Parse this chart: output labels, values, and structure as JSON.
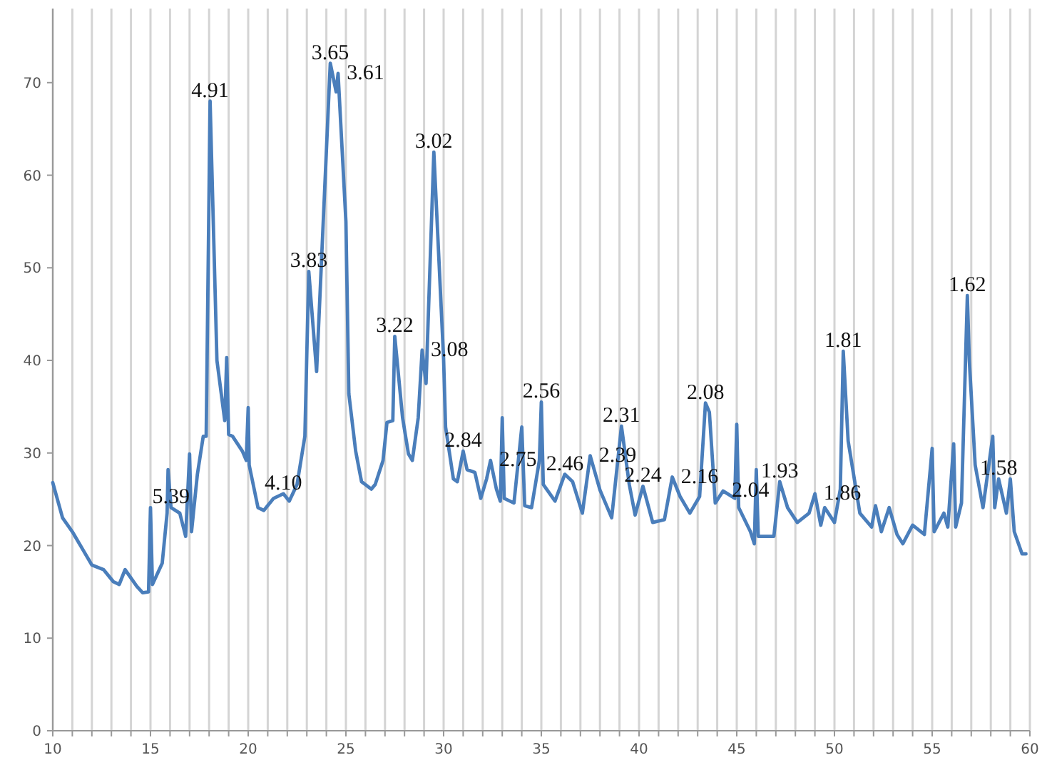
{
  "chart_data": {
    "type": "line",
    "grid": "x",
    "line_style": "solid",
    "marker": "none",
    "xlim": [
      10,
      60
    ],
    "ylim": [
      0,
      78
    ],
    "xticks": [
      10,
      {
        "value": 11,
        "label": null
      },
      {
        "value": 12,
        "label": null
      },
      {
        "value": 13,
        "label": null
      },
      {
        "value": 14,
        "label": null
      },
      15,
      {
        "value": 16,
        "label": null
      },
      {
        "value": 17,
        "label": null
      },
      {
        "value": 18,
        "label": null
      },
      {
        "value": 19,
        "label": null
      },
      20,
      {
        "value": 21,
        "label": null
      },
      {
        "value": 22,
        "label": null
      },
      {
        "value": 23,
        "label": null
      },
      {
        "value": 24,
        "label": null
      },
      25,
      {
        "value": 26,
        "label": null
      },
      {
        "value": 27,
        "label": null
      },
      {
        "value": 28,
        "label": null
      },
      {
        "value": 29,
        "label": null
      },
      30,
      {
        "value": 31,
        "label": null
      },
      {
        "value": 32,
        "label": null
      },
      {
        "value": 33,
        "label": null
      },
      {
        "value": 34,
        "label": null
      },
      35,
      {
        "value": 36,
        "label": null
      },
      {
        "value": 37,
        "label": null
      },
      {
        "value": 38,
        "label": null
      },
      {
        "value": 39,
        "label": null
      },
      40,
      {
        "value": 41,
        "label": null
      },
      {
        "value": 42,
        "label": null
      },
      {
        "value": 43,
        "label": null
      },
      {
        "value": 44,
        "label": null
      },
      45,
      {
        "value": 46,
        "label": null
      },
      {
        "value": 47,
        "label": null
      },
      {
        "value": 48,
        "label": null
      },
      {
        "value": 49,
        "label": null
      },
      50,
      {
        "value": 51,
        "label": null
      },
      {
        "value": 52,
        "label": null
      },
      {
        "value": 53,
        "label": null
      },
      {
        "value": 54,
        "label": null
      },
      55,
      {
        "value": 56,
        "label": null
      },
      {
        "value": 57,
        "label": null
      },
      {
        "value": 58,
        "label": null
      },
      {
        "value": 59,
        "label": null
      },
      60
    ],
    "yticks": [
      0,
      10,
      20,
      30,
      40,
      50,
      60,
      70
    ],
    "series": [
      {
        "color": "#4a7ebb",
        "x": [
          10,
          10.5,
          11,
          11.5,
          12,
          12.6,
          13.1,
          13.4,
          13.7,
          14.3,
          14.6,
          14.9,
          15,
          15.1,
          15.6,
          15.85,
          15.9,
          16.05,
          16.5,
          16.8,
          17,
          17.1,
          17.4,
          17.7,
          17.85,
          18.05,
          18.4,
          18.8,
          18.9,
          19,
          19.2,
          19.7,
          19.9,
          20,
          20.05,
          20.5,
          20.8,
          21.3,
          21.8,
          22.1,
          22.5,
          22.9,
          23.1,
          23.5,
          24.2,
          24.5,
          24.6,
          25,
          25.15,
          25.5,
          25.8,
          26.3,
          26.5,
          26.9,
          27.1,
          27.4,
          27.5,
          27.9,
          28.2,
          28.4,
          28.7,
          28.9,
          29.1,
          29.5,
          30,
          30.1,
          30.5,
          30.7,
          31,
          31.2,
          31.6,
          31.9,
          32.2,
          32.4,
          32.7,
          32.9,
          33,
          33.1,
          33.6,
          34,
          34.15,
          34.5,
          34.9,
          35,
          35.1,
          35.7,
          36.2,
          36.6,
          37.1,
          37.5,
          38,
          38.6,
          39.1,
          39.5,
          39.8,
          40.2,
          40.7,
          41.3,
          41.7,
          42.1,
          42.6,
          43.1,
          43.4,
          43.6,
          43.9,
          44.3,
          44.9,
          45,
          45.1,
          45.7,
          45.9,
          46,
          46.1,
          46.9,
          47.2,
          47.6,
          48.1,
          48.7,
          49,
          49.3,
          49.5,
          50,
          50.3,
          50.45,
          50.7,
          51.3,
          51.9,
          52.1,
          52.4,
          52.8,
          53.2,
          53.5,
          54,
          54.6,
          55,
          55.1,
          55.6,
          55.8,
          56.1,
          56.2,
          56.5,
          56.8,
          56.9,
          57.2,
          57.6,
          58.1,
          58.2,
          58.4,
          58.8,
          59,
          59.2,
          59.6,
          59.8
        ],
        "values": [
          26.8,
          23,
          21.5,
          19.7,
          17.9,
          17.4,
          16.1,
          15.8,
          17.4,
          15.6,
          14.9,
          15,
          24.1,
          15.8,
          18.1,
          23.5,
          28.2,
          24.1,
          23.5,
          21,
          29.9,
          21.5,
          27.7,
          31.8,
          31.8,
          68,
          40,
          33.5,
          40.3,
          32,
          31.8,
          30.2,
          29.2,
          34.9,
          28.7,
          24.1,
          23.8,
          25.1,
          25.6,
          24.8,
          26.6,
          31.8,
          49.6,
          38.8,
          72.1,
          69,
          71,
          55,
          36.4,
          30.2,
          26.9,
          26.1,
          26.6,
          29.2,
          33.3,
          33.5,
          42.6,
          33.8,
          29.9,
          29.2,
          33.8,
          41.1,
          37.5,
          62.5,
          40.1,
          32.8,
          27.2,
          26.9,
          30.2,
          28.2,
          27.9,
          25.1,
          27.2,
          29.2,
          26.1,
          24.8,
          33.8,
          25.1,
          24.6,
          32.8,
          24.3,
          24.1,
          29.2,
          35.5,
          26.6,
          24.8,
          27.7,
          26.9,
          23.5,
          29.7,
          26,
          23,
          32.9,
          26.6,
          23.3,
          26.4,
          22.5,
          22.8,
          27.4,
          25.3,
          23.5,
          25.3,
          35.4,
          34.4,
          24.6,
          25.9,
          25.1,
          33.1,
          24.1,
          21.5,
          20.2,
          28.2,
          21,
          21,
          26.9,
          24.1,
          22.5,
          23.5,
          25.6,
          22.2,
          24.1,
          22.5,
          26.1,
          41,
          31.3,
          23.5,
          22,
          24.3,
          21.5,
          24.1,
          21.2,
          20.2,
          22.2,
          21.2,
          30.5,
          21.5,
          23.5,
          22,
          31,
          22,
          24.6,
          47,
          40,
          28.7,
          24.1,
          31.8,
          24.1,
          27.2,
          23.5,
          27.2,
          21.5,
          19.1,
          19.1
        ]
      }
    ],
    "annotations": [
      {
        "text": "5.39",
        "x": 16.05,
        "y": 24.1
      },
      {
        "text": "4.91",
        "x": 18.05,
        "y": 68
      },
      {
        "text": "3.65",
        "x": 24.2,
        "y": 72.1
      },
      {
        "text": "3.61",
        "x": 24.6,
        "y": 71
      },
      {
        "text": "3.83",
        "x": 23.1,
        "y": 49.6
      },
      {
        "text": "3.02",
        "x": 29.5,
        "y": 62.5
      },
      {
        "text": "3.22",
        "x": 27.5,
        "y": 42.6
      },
      {
        "text": "3.08",
        "x": 28.9,
        "y": 41.1
      },
      {
        "text": "4.10",
        "x": 21.8,
        "y": 25.6
      },
      {
        "text": "2.84",
        "x": 31,
        "y": 30.2
      },
      {
        "text": "2.75",
        "x": 32.4,
        "y": 29.2
      },
      {
        "text": "2.56",
        "x": 35,
        "y": 35.5
      },
      {
        "text": "2.46",
        "x": 36.2,
        "y": 27.7
      },
      {
        "text": "2.39",
        "x": 37.5,
        "y": 29.7
      },
      {
        "text": "2.31",
        "x": 39.1,
        "y": 32.9
      },
      {
        "text": "2.24",
        "x": 40.2,
        "y": 26.4
      },
      {
        "text": "2.16",
        "x": 41.7,
        "y": 27.4
      },
      {
        "text": "2.08",
        "x": 43.4,
        "y": 35.4
      },
      {
        "text": "2.04",
        "x": 44.3,
        "y": 25.9
      },
      {
        "text": "1.93",
        "x": 47.2,
        "y": 26.9
      },
      {
        "text": "1.86",
        "x": 49,
        "y": 25.6
      },
      {
        "text": "1.81",
        "x": 50.45,
        "y": 41
      },
      {
        "text": "1.62",
        "x": 56.8,
        "y": 47
      },
      {
        "text": "1.58",
        "x": 58.4,
        "y": 27.2
      }
    ]
  }
}
